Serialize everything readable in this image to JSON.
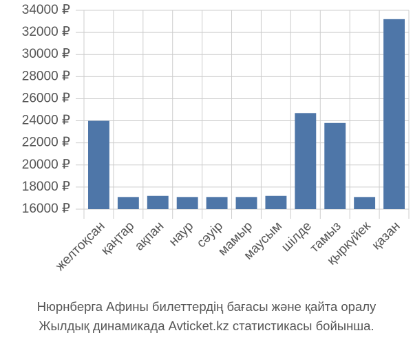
{
  "chart_data": {
    "type": "bar",
    "categories": [
      "желтоқсан",
      "қаңтар",
      "ақпан",
      "наур",
      "сәуір",
      "мамыр",
      "маусым",
      "шілде",
      "тамыз",
      "қыркүйек",
      "қазан"
    ],
    "values": [
      24000,
      17100,
      17200,
      17100,
      17100,
      17100,
      17200,
      24700,
      23800,
      17100,
      33200
    ],
    "color": "#4e76a8",
    "ylim": [
      16000,
      34000
    ],
    "yticks": [
      {
        "value": 16000,
        "label": "16000 ₽"
      },
      {
        "value": 18000,
        "label": "18000 ₽"
      },
      {
        "value": 20000,
        "label": "20000 ₽"
      },
      {
        "value": 22000,
        "label": "22000 ₽"
      },
      {
        "value": 24000,
        "label": "24000 ₽"
      },
      {
        "value": 26000,
        "label": "26000 ₽"
      },
      {
        "value": 28000,
        "label": "28000 ₽"
      },
      {
        "value": 30000,
        "label": "30000 ₽"
      },
      {
        "value": 32000,
        "label": "32000 ₽"
      },
      {
        "value": 34000,
        "label": "34000 ₽"
      }
    ],
    "grid": true,
    "caption": [
      "Нюрнберга Афины билеттердің бағасы және қайта оралу",
      "Жылдық динамикада Avticket.kz статистикасы бойынша."
    ]
  }
}
